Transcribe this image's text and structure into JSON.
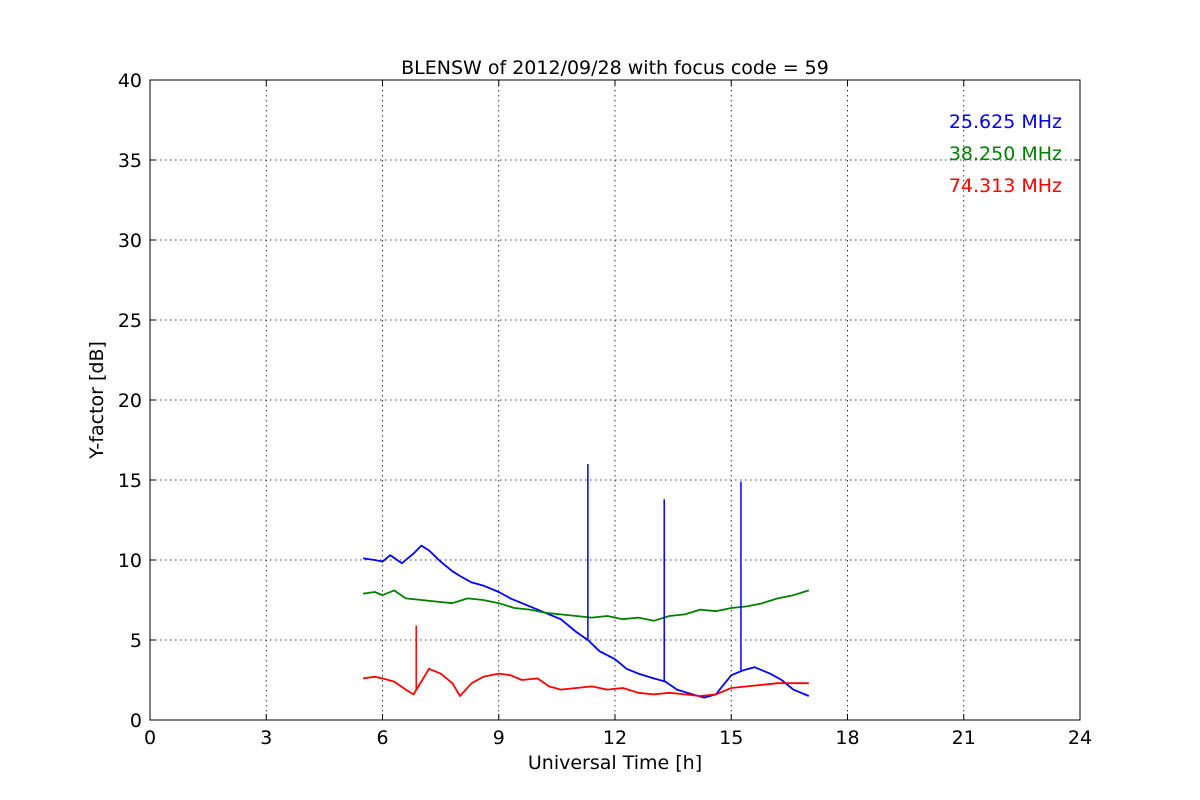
{
  "chart_data": {
    "type": "line",
    "title": "BLENSW of 2012/09/28 with focus code = 59",
    "xlabel": "Universal Time [h]",
    "ylabel": "Y-factor [dB]",
    "xlim": [
      0,
      24
    ],
    "ylim": [
      0,
      40
    ],
    "xticks": [
      0,
      3,
      6,
      9,
      12,
      15,
      18,
      21,
      24
    ],
    "yticks": [
      0,
      5,
      10,
      15,
      20,
      25,
      30,
      35,
      40
    ],
    "grid": true,
    "legend_position": "top-right",
    "series": [
      {
        "name": "25.625 MHz",
        "color": "#0000ff",
        "x": [
          5.5,
          5.8,
          6.0,
          6.2,
          6.5,
          6.8,
          7.0,
          7.2,
          7.5,
          7.8,
          8.0,
          8.3,
          8.6,
          9.0,
          9.3,
          9.6,
          10.0,
          10.3,
          10.6,
          11.0,
          11.3,
          11.6,
          12.0,
          12.3,
          12.6,
          13.0,
          13.3,
          13.6,
          14.0,
          14.3,
          14.6,
          15.0,
          15.3,
          15.6,
          16.0,
          16.3,
          16.6,
          17.0
        ],
        "y": [
          10.1,
          10.0,
          9.9,
          10.3,
          9.8,
          10.4,
          10.9,
          10.6,
          9.9,
          9.3,
          9.0,
          8.6,
          8.4,
          8.0,
          7.6,
          7.3,
          6.9,
          6.6,
          6.3,
          5.5,
          5.0,
          4.3,
          3.8,
          3.2,
          2.9,
          2.6,
          2.4,
          1.9,
          1.6,
          1.4,
          1.6,
          2.8,
          3.1,
          3.3,
          2.9,
          2.5,
          1.9,
          1.5
        ]
      },
      {
        "name": "38.250 MHz",
        "color": "#008000",
        "x": [
          5.5,
          5.8,
          6.0,
          6.3,
          6.6,
          7.0,
          7.4,
          7.8,
          8.2,
          8.6,
          9.0,
          9.4,
          9.8,
          10.2,
          10.6,
          11.0,
          11.4,
          11.8,
          12.2,
          12.6,
          13.0,
          13.4,
          13.8,
          14.2,
          14.6,
          15.0,
          15.4,
          15.8,
          16.2,
          16.6,
          17.0
        ],
        "y": [
          7.9,
          8.0,
          7.8,
          8.1,
          7.6,
          7.5,
          7.4,
          7.3,
          7.6,
          7.5,
          7.3,
          7.0,
          6.9,
          6.7,
          6.6,
          6.5,
          6.4,
          6.5,
          6.3,
          6.4,
          6.2,
          6.5,
          6.6,
          6.9,
          6.8,
          7.0,
          7.1,
          7.3,
          7.6,
          7.8,
          8.1
        ]
      },
      {
        "name": "74.313 MHz",
        "color": "#ff0000",
        "x": [
          5.5,
          5.8,
          6.0,
          6.3,
          6.6,
          6.8,
          7.0,
          7.2,
          7.5,
          7.8,
          8.0,
          8.3,
          8.6,
          9.0,
          9.3,
          9.6,
          10.0,
          10.3,
          10.6,
          11.0,
          11.4,
          11.8,
          12.2,
          12.6,
          13.0,
          13.4,
          13.8,
          14.2,
          14.6,
          15.0,
          15.4,
          15.8,
          16.2,
          16.6,
          17.0
        ],
        "y": [
          2.6,
          2.7,
          2.6,
          2.4,
          1.9,
          1.6,
          2.4,
          3.2,
          2.9,
          2.3,
          1.5,
          2.3,
          2.7,
          2.9,
          2.8,
          2.5,
          2.6,
          2.1,
          1.9,
          2.0,
          2.1,
          1.9,
          2.0,
          1.7,
          1.6,
          1.7,
          1.6,
          1.5,
          1.6,
          2.0,
          2.1,
          2.2,
          2.3,
          2.3,
          2.3
        ]
      }
    ],
    "spikes": [
      {
        "series": 0,
        "x": 11.3,
        "y": 16.0
      },
      {
        "series": 0,
        "x": 13.27,
        "y": 13.8
      },
      {
        "series": 0,
        "x": 15.25,
        "y": 14.9
      },
      {
        "series": 2,
        "x": 6.87,
        "y": 5.9
      }
    ]
  }
}
